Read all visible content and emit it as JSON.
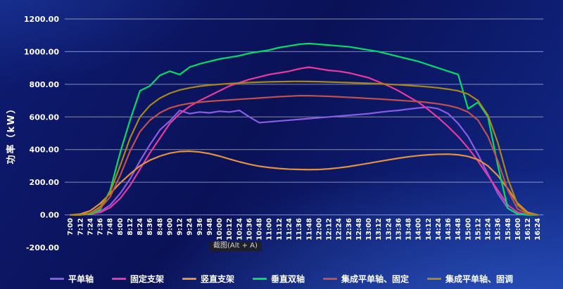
{
  "watermark": {
    "label": "截图(Alt + A)"
  },
  "colors": {
    "background": "#0a1157",
    "grid": "rgba(255,255,255,0.5)",
    "text": "#ffffff"
  },
  "chart_data": {
    "type": "line",
    "title": "",
    "xlabel": "",
    "ylabel": "功率（kW）",
    "ylim": [
      -200,
      1200
    ],
    "grid": true,
    "legend_position": "bottom",
    "y_ticks": [
      {
        "label": "1200.00",
        "value": 1200
      },
      {
        "label": "1000.00",
        "value": 1000
      },
      {
        "label": "800.00",
        "value": 800
      },
      {
        "label": "600.00",
        "value": 600
      },
      {
        "label": "400.00",
        "value": 400
      },
      {
        "label": "200.00",
        "value": 200
      },
      {
        "label": "0.00",
        "value": 0
      },
      {
        "label": "-200.00",
        "value": -200
      }
    ],
    "x": [
      "7:00",
      "7:12",
      "7:24",
      "7:36",
      "7:48",
      "8:00",
      "8:12",
      "8:24",
      "8:36",
      "8:48",
      "9:00",
      "9:12",
      "9:24",
      "9:36",
      "9:48",
      "10:00",
      "10:12",
      "10:24",
      "10:36",
      "10:48",
      "11:00",
      "11:12",
      "11:24",
      "11:36",
      "11:48",
      "12:00",
      "12:12",
      "12:24",
      "12:36",
      "12:48",
      "13:00",
      "13:12",
      "13:24",
      "13:36",
      "13:48",
      "14:00",
      "14:12",
      "14:24",
      "14:36",
      "14:48",
      "15:00",
      "15:12",
      "15:24",
      "15:36",
      "15:48",
      "16:00",
      "16:12",
      "16:24"
    ],
    "series": [
      {
        "name": "平单轴",
        "color": "#8a5ce6",
        "values": [
          0,
          0,
          5,
          20,
          60,
          130,
          220,
          330,
          430,
          520,
          575,
          640,
          620,
          630,
          625,
          635,
          630,
          640,
          600,
          565,
          570,
          575,
          580,
          585,
          590,
          595,
          600,
          605,
          610,
          615,
          620,
          628,
          635,
          640,
          648,
          655,
          660,
          650,
          620,
          560,
          480,
          370,
          250,
          130,
          40,
          5,
          0,
          0
        ]
      },
      {
        "name": "固定支架",
        "color": "#e83a9e",
        "values": [
          0,
          0,
          5,
          15,
          45,
          100,
          180,
          280,
          380,
          470,
          560,
          620,
          665,
          700,
          730,
          760,
          790,
          810,
          830,
          845,
          860,
          870,
          880,
          895,
          905,
          895,
          885,
          880,
          870,
          855,
          840,
          815,
          790,
          760,
          725,
          690,
          645,
          595,
          540,
          480,
          410,
          330,
          240,
          150,
          60,
          15,
          0,
          0
        ]
      },
      {
        "name": "竖直支架",
        "color": "#e0923f",
        "values": [
          0,
          5,
          25,
          70,
          130,
          195,
          250,
          300,
          335,
          360,
          378,
          388,
          390,
          385,
          375,
          360,
          342,
          325,
          310,
          298,
          290,
          284,
          280,
          278,
          277,
          278,
          282,
          288,
          296,
          306,
          316,
          327,
          337,
          347,
          356,
          363,
          368,
          371,
          372,
          368,
          358,
          338,
          300,
          240,
          160,
          70,
          15,
          0
        ]
      },
      {
        "name": "垂直双轴",
        "color": "#00dd66",
        "values": [
          0,
          0,
          5,
          30,
          150,
          380,
          580,
          760,
          790,
          855,
          880,
          860,
          905,
          925,
          940,
          955,
          965,
          975,
          990,
          1000,
          1010,
          1025,
          1035,
          1045,
          1050,
          1045,
          1040,
          1035,
          1030,
          1020,
          1010,
          1000,
          985,
          970,
          955,
          940,
          920,
          900,
          880,
          860,
          650,
          690,
          600,
          300,
          40,
          5,
          0,
          0
        ]
      },
      {
        "name": "集成平单轴、固定",
        "color": "#c0504d",
        "values": [
          0,
          0,
          10,
          40,
          110,
          240,
          390,
          510,
          580,
          625,
          655,
          672,
          683,
          690,
          696,
          700,
          704,
          708,
          712,
          716,
          720,
          724,
          727,
          730,
          730,
          728,
          726,
          723,
          720,
          717,
          713,
          710,
          706,
          702,
          698,
          694,
          688,
          680,
          670,
          655,
          630,
          580,
          480,
          330,
          150,
          35,
          5,
          0
        ]
      },
      {
        "name": "集成平单轴、固调",
        "color": "#a98618",
        "values": [
          0,
          0,
          10,
          50,
          140,
          300,
          470,
          600,
          670,
          715,
          745,
          765,
          778,
          788,
          795,
          800,
          804,
          808,
          811,
          813,
          815,
          816,
          817,
          818,
          817,
          816,
          814,
          812,
          810,
          808,
          806,
          803,
          800,
          797,
          793,
          789,
          784,
          778,
          770,
          760,
          740,
          700,
          610,
          440,
          220,
          60,
          8,
          0
        ]
      }
    ]
  }
}
